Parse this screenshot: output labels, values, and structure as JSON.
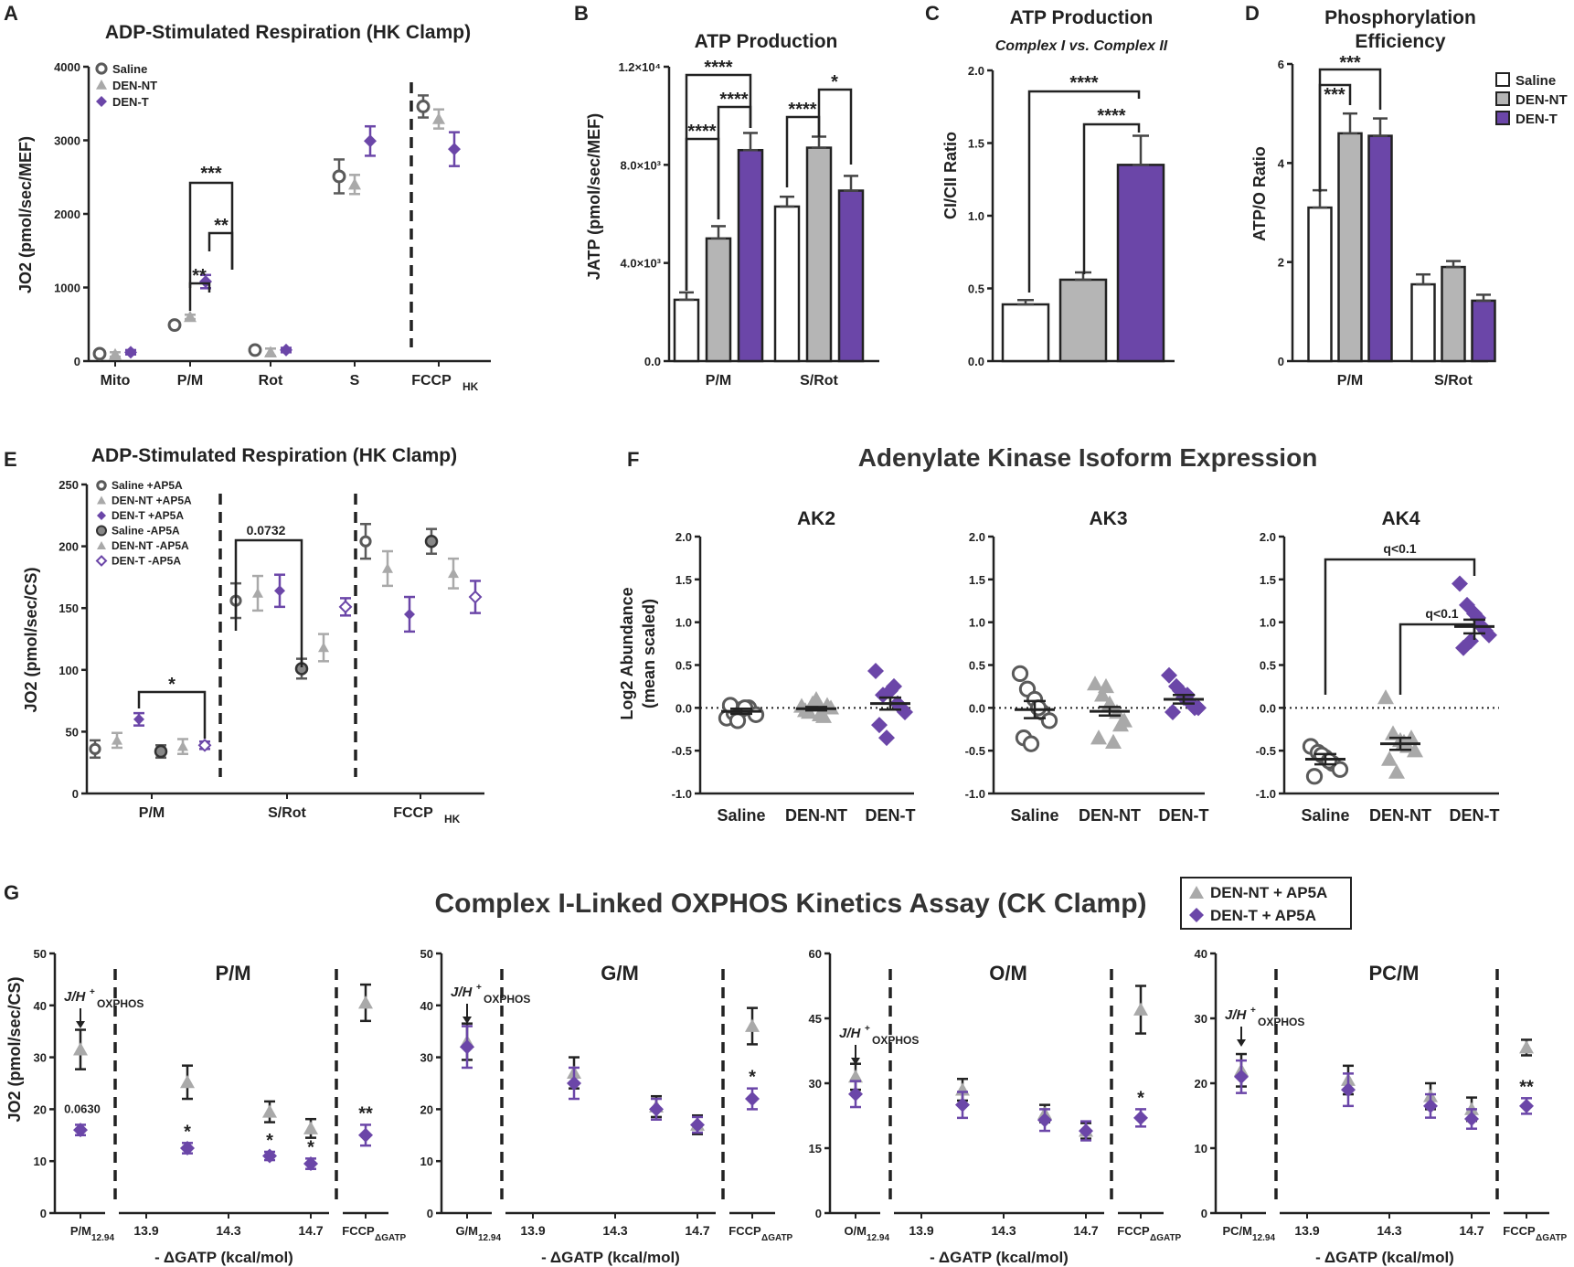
{
  "colors": {
    "saline": "#5a5a5a",
    "dennt": "#a9a9a9",
    "dent": "#6b46a8",
    "axis": "#222222",
    "white": "#ffffff"
  },
  "panels": {
    "A": {
      "letter": "A",
      "title": "ADP-Stimulated Respiration (HK Clamp)",
      "ylabel": "JO2 (pmol/sec/MEF)",
      "categories": [
        "Mito",
        "P/M",
        "Rot",
        "S",
        "FCCP_HK"
      ],
      "yticks": [
        "0",
        "1000",
        "2000",
        "3000",
        "4000"
      ],
      "legend": [
        "Saline",
        "DEN-NT",
        "DEN-T"
      ],
      "sig": [
        "***",
        "**",
        "**"
      ]
    },
    "B": {
      "letter": "B",
      "title": "ATP Production",
      "ylabel": "JATP (pmol/sec/MEF)",
      "yticks": [
        "0.0",
        "4.0×10³",
        "8.0×10³",
        "1.2×10⁴"
      ],
      "categories": [
        "P/M",
        "S/Rot"
      ],
      "sig": [
        "****",
        "****",
        "****",
        "****",
        "*"
      ]
    },
    "C": {
      "letter": "C",
      "title": "ATP Production",
      "subtitle": "Complex I vs. Complex II",
      "ylabel": "CI/CII Ratio",
      "yticks": [
        "0.0",
        "0.5",
        "1.0",
        "1.5",
        "2.0"
      ],
      "sig": [
        "****",
        "****"
      ]
    },
    "D": {
      "letter": "D",
      "title": "Phosphorylation",
      "title2": "Efficiency",
      "ylabel": "ATP/O Ratio",
      "yticks": [
        "0",
        "2",
        "4",
        "6"
      ],
      "categories": [
        "P/M",
        "S/Rot"
      ],
      "legend": [
        "Saline",
        "DEN-NT",
        "DEN-T"
      ],
      "sig": [
        "***",
        "***"
      ]
    },
    "E": {
      "letter": "E",
      "title": "ADP-Stimulated Respiration (HK Clamp)",
      "ylabel": "JO2 (pmol/sec/CS)",
      "yticks": [
        "0",
        "50",
        "100",
        "150",
        "200",
        "250"
      ],
      "categories": [
        "P/M",
        "S/Rot",
        "FCCP_HK"
      ],
      "legend": [
        "Saline +AP5A",
        "DEN-NT +AP5A",
        "DEN-T +AP5A",
        "Saline -AP5A",
        "DEN-NT -AP5A",
        "DEN-T -AP5A"
      ],
      "sig": [
        "*"
      ],
      "annot": "0.0732"
    },
    "F": {
      "letter": "F",
      "title": "Adenylate Kinase Isoform Expression",
      "ylabel": "Log2 Abundance",
      "ylabel2": "(mean scaled)",
      "subpanels": [
        "AK2",
        "AK3",
        "AK4"
      ],
      "categories": [
        "Saline",
        "DEN-NT",
        "DEN-T"
      ],
      "yticks": [
        "-1.0",
        "-0.5",
        "0.0",
        "0.5",
        "1.0",
        "1.5",
        "2.0"
      ],
      "q": [
        "q<0.1",
        "q<0.1"
      ]
    },
    "G": {
      "letter": "G",
      "title": "Complex I-Linked OXPHOS Kinetics Assay (CK Clamp)",
      "legend": [
        "DEN-NT + AP5A",
        "DEN-T + AP5A"
      ],
      "ylabel": "JO2 (pmol/sec/CS)",
      "xlabel": "- ΔGATP (kcal/mol)",
      "xticks": [
        "13.9",
        "14.3",
        "14.7"
      ],
      "subpanels": [
        "P/M",
        "G/M",
        "O/M",
        "PC/M"
      ],
      "startlabels": [
        "P/M12.94",
        "G/M12.94",
        "O/M12.94",
        "PC/M12.94"
      ],
      "fccp": "FCCP",
      "fccpsub": "ΔGATP",
      "jh": "J/H+OXPHOS",
      "sig_pm": [
        "*",
        "*",
        "*",
        "**"
      ],
      "annot_pm": "0.0630",
      "sig_gm": "*",
      "sig_om": "*",
      "sig_pcm": "**"
    }
  },
  "chart_data": [
    {
      "panel": "A",
      "type": "scatter",
      "categories": [
        "Mito",
        "P/M",
        "Rot",
        "S",
        "FCCP_HK"
      ],
      "ylim": [
        0,
        4000
      ],
      "series": [
        {
          "name": "Saline",
          "values": [
            100,
            490,
            150,
            2510,
            3460
          ],
          "err": [
            30,
            25,
            40,
            230,
            150
          ]
        },
        {
          "name": "DEN-NT",
          "values": [
            90,
            600,
            120,
            2400,
            3290
          ],
          "err": [
            30,
            30,
            50,
            130,
            130
          ]
        },
        {
          "name": "DEN-T",
          "values": [
            120,
            1080,
            150,
            2990,
            2880
          ],
          "err": [
            30,
            90,
            30,
            200,
            230
          ]
        }
      ]
    },
    {
      "panel": "B",
      "type": "bar",
      "categories": [
        "P/M",
        "S/Rot"
      ],
      "ylim": [
        0,
        12000
      ],
      "series": [
        {
          "name": "Saline",
          "values": [
            2500,
            6300
          ],
          "err": [
            300,
            400
          ]
        },
        {
          "name": "DEN-NT",
          "values": [
            5000,
            8700
          ],
          "err": [
            500,
            450
          ]
        },
        {
          "name": "DEN-T",
          "values": [
            8600,
            6950
          ],
          "err": [
            700,
            600
          ]
        }
      ]
    },
    {
      "panel": "C",
      "type": "bar",
      "categories": [
        "Saline",
        "DEN-NT",
        "DEN-T"
      ],
      "ylim": [
        0,
        2
      ],
      "values": [
        0.39,
        0.56,
        1.35
      ],
      "err": [
        0.03,
        0.05,
        0.2
      ]
    },
    {
      "panel": "D",
      "type": "bar",
      "categories": [
        "P/M",
        "S/Rot"
      ],
      "ylim": [
        0,
        6
      ],
      "series": [
        {
          "name": "Saline",
          "values": [
            3.1,
            1.55
          ],
          "err": [
            0.35,
            0.2
          ]
        },
        {
          "name": "DEN-NT",
          "values": [
            4.6,
            1.9
          ],
          "err": [
            0.4,
            0.12
          ]
        },
        {
          "name": "DEN-T",
          "values": [
            4.55,
            1.22
          ],
          "err": [
            0.35,
            0.12
          ]
        }
      ]
    },
    {
      "panel": "E",
      "type": "scatter",
      "categories": [
        "P/M",
        "S/Rot",
        "FCCP_HK"
      ],
      "ylim": [
        0,
        250
      ],
      "series": [
        {
          "name": "Saline +AP5A",
          "values": [
            36,
            156,
            204
          ],
          "err": [
            7,
            14,
            14
          ]
        },
        {
          "name": "DEN-NT +AP5A",
          "values": [
            43,
            162,
            182
          ],
          "err": [
            6,
            14,
            14
          ]
        },
        {
          "name": "DEN-T +AP5A",
          "values": [
            60,
            164,
            145
          ],
          "err": [
            5,
            13,
            14
          ]
        },
        {
          "name": "Saline -AP5A",
          "values": [
            34,
            101,
            204
          ],
          "err": [
            5,
            8,
            10
          ]
        },
        {
          "name": "DEN-NT -AP5A",
          "values": [
            38,
            118,
            178
          ],
          "err": [
            6,
            11,
            12
          ]
        },
        {
          "name": "DEN-T -AP5A",
          "values": [
            39,
            151,
            159
          ],
          "err": [
            3,
            7,
            13
          ]
        }
      ]
    },
    {
      "panel": "F-AK2",
      "type": "scatter",
      "ylim": [
        -1,
        2
      ],
      "categories": [
        "Saline",
        "DEN-NT",
        "DEN-T"
      ],
      "groups": [
        {
          "name": "Saline",
          "mean": -0.04,
          "sem": 0.03,
          "points": [
            -0.12,
            -0.06,
            -0.02,
            0.0,
            -0.08,
            0.03,
            -0.15,
            0.0
          ]
        },
        {
          "name": "DEN-NT",
          "mean": -0.01,
          "sem": 0.02,
          "points": [
            0.02,
            -0.05,
            0.1,
            -0.1,
            0.0,
            -0.03,
            0.05,
            -0.08,
            0.03
          ]
        },
        {
          "name": "DEN-T",
          "mean": 0.05,
          "sem": 0.07,
          "points": [
            0.43,
            0.15,
            0.2,
            0.05,
            -0.05,
            -0.2,
            -0.35,
            0.25,
            0.0
          ]
        }
      ]
    },
    {
      "panel": "F-AK3",
      "type": "scatter",
      "ylim": [
        -1,
        2
      ],
      "categories": [
        "Saline",
        "DEN-NT",
        "DEN-T"
      ],
      "groups": [
        {
          "name": "Saline",
          "mean": -0.02,
          "sem": 0.1,
          "points": [
            0.4,
            0.22,
            0.1,
            -0.05,
            -0.15,
            -0.35,
            -0.42,
            0.0
          ]
        },
        {
          "name": "DEN-NT",
          "mean": -0.04,
          "sem": 0.05,
          "points": [
            0.28,
            0.15,
            0.05,
            -0.05,
            -0.15,
            -0.35,
            0.25,
            -0.4,
            -0.2
          ]
        },
        {
          "name": "DEN-T",
          "mean": 0.1,
          "sem": 0.05,
          "points": [
            0.38,
            0.25,
            0.12,
            0.05,
            0.0,
            -0.05,
            0.2,
            0.15,
            0.0
          ]
        }
      ]
    },
    {
      "panel": "F-AK4",
      "type": "scatter",
      "ylim": [
        -1,
        2
      ],
      "categories": [
        "Saline",
        "DEN-NT",
        "DEN-T"
      ],
      "groups": [
        {
          "name": "Saline",
          "mean": -0.6,
          "sem": 0.06,
          "points": [
            -0.45,
            -0.52,
            -0.58,
            -0.65,
            -0.72,
            -0.8,
            -0.55,
            -0.62
          ]
        },
        {
          "name": "DEN-NT",
          "mean": -0.42,
          "sem": 0.07,
          "points": [
            0.12,
            -0.3,
            -0.38,
            -0.45,
            -0.5,
            -0.6,
            -0.75,
            -0.4,
            -0.35
          ]
        },
        {
          "name": "DEN-T",
          "mean": 0.95,
          "sem": 0.08,
          "points": [
            1.45,
            1.2,
            1.1,
            0.95,
            0.85,
            0.7,
            0.78,
            1.05,
            0.9
          ]
        }
      ]
    },
    {
      "panel": "G-P/M",
      "type": "scatter",
      "ylim": [
        0,
        50
      ],
      "xticks": [
        13.9,
        14.3,
        14.7
      ],
      "series": [
        {
          "name": "DEN-NT + AP5A",
          "start": [
            31.5,
            3.8
          ],
          "x": [
            14.1,
            14.5,
            14.7
          ],
          "values": [
            25.2,
            19.5,
            16.3
          ],
          "err": [
            3.2,
            2.0,
            1.8
          ],
          "fccp": [
            40.5,
            3.5
          ]
        },
        {
          "name": "DEN-T + AP5A",
          "start": [
            16.0,
            1.0
          ],
          "x": [
            14.1,
            14.5,
            14.7
          ],
          "values": [
            12.5,
            11.0,
            9.5
          ],
          "err": [
            1.0,
            0.8,
            1.0
          ],
          "fccp": [
            15.0,
            2.0
          ]
        }
      ]
    },
    {
      "panel": "G-G/M",
      "type": "scatter",
      "ylim": [
        0,
        50
      ],
      "xticks": [
        13.9,
        14.3,
        14.7
      ],
      "series": [
        {
          "name": "DEN-NT + AP5A",
          "start": [
            33.0,
            3.5
          ],
          "x": [
            14.1,
            14.5,
            14.7
          ],
          "values": [
            27.0,
            20.5,
            17.0
          ],
          "err": [
            3.0,
            2.0,
            1.8
          ],
          "fccp": [
            36.0,
            3.5
          ]
        },
        {
          "name": "DEN-T + AP5A",
          "start": [
            32.0,
            4.0
          ],
          "x": [
            14.1,
            14.5,
            14.7
          ],
          "values": [
            25.0,
            20.0,
            17.0
          ],
          "err": [
            3.0,
            2.0,
            1.5
          ],
          "fccp": [
            22.0,
            2.0
          ]
        }
      ]
    },
    {
      "panel": "G-O/M",
      "type": "scatter",
      "ylim": [
        0,
        60
      ],
      "xticks": [
        13.9,
        14.3,
        14.7
      ],
      "series": [
        {
          "name": "DEN-NT + AP5A",
          "start": [
            31.5,
            3.0
          ],
          "x": [
            14.1,
            14.5,
            14.7
          ],
          "values": [
            28.5,
            23.0,
            19.0
          ],
          "err": [
            2.5,
            2.0,
            1.8
          ],
          "fccp": [
            47.0,
            5.5
          ]
        },
        {
          "name": "DEN-T + AP5A",
          "start": [
            27.5,
            3.0
          ],
          "x": [
            14.1,
            14.5,
            14.7
          ],
          "values": [
            25.0,
            21.5,
            19.0
          ],
          "err": [
            3.0,
            2.5,
            2.2
          ],
          "fccp": [
            22.0,
            2.0
          ]
        }
      ]
    },
    {
      "panel": "G-PC/M",
      "type": "scatter",
      "ylim": [
        0,
        40
      ],
      "xticks": [
        13.9,
        14.3,
        14.7
      ],
      "series": [
        {
          "name": "DEN-NT + AP5A",
          "start": [
            22.0,
            2.5
          ],
          "x": [
            14.1,
            14.5,
            14.7
          ],
          "values": [
            20.5,
            18.0,
            16.0
          ],
          "err": [
            2.2,
            2.0,
            1.8
          ],
          "fccp": [
            25.5,
            1.2
          ]
        },
        {
          "name": "DEN-T + AP5A",
          "start": [
            21.0,
            2.5
          ],
          "x": [
            14.1,
            14.5,
            14.7
          ],
          "values": [
            19.0,
            16.5,
            14.5
          ],
          "err": [
            2.5,
            1.8,
            1.5
          ],
          "fccp": [
            16.5,
            1.2
          ]
        }
      ]
    }
  ]
}
